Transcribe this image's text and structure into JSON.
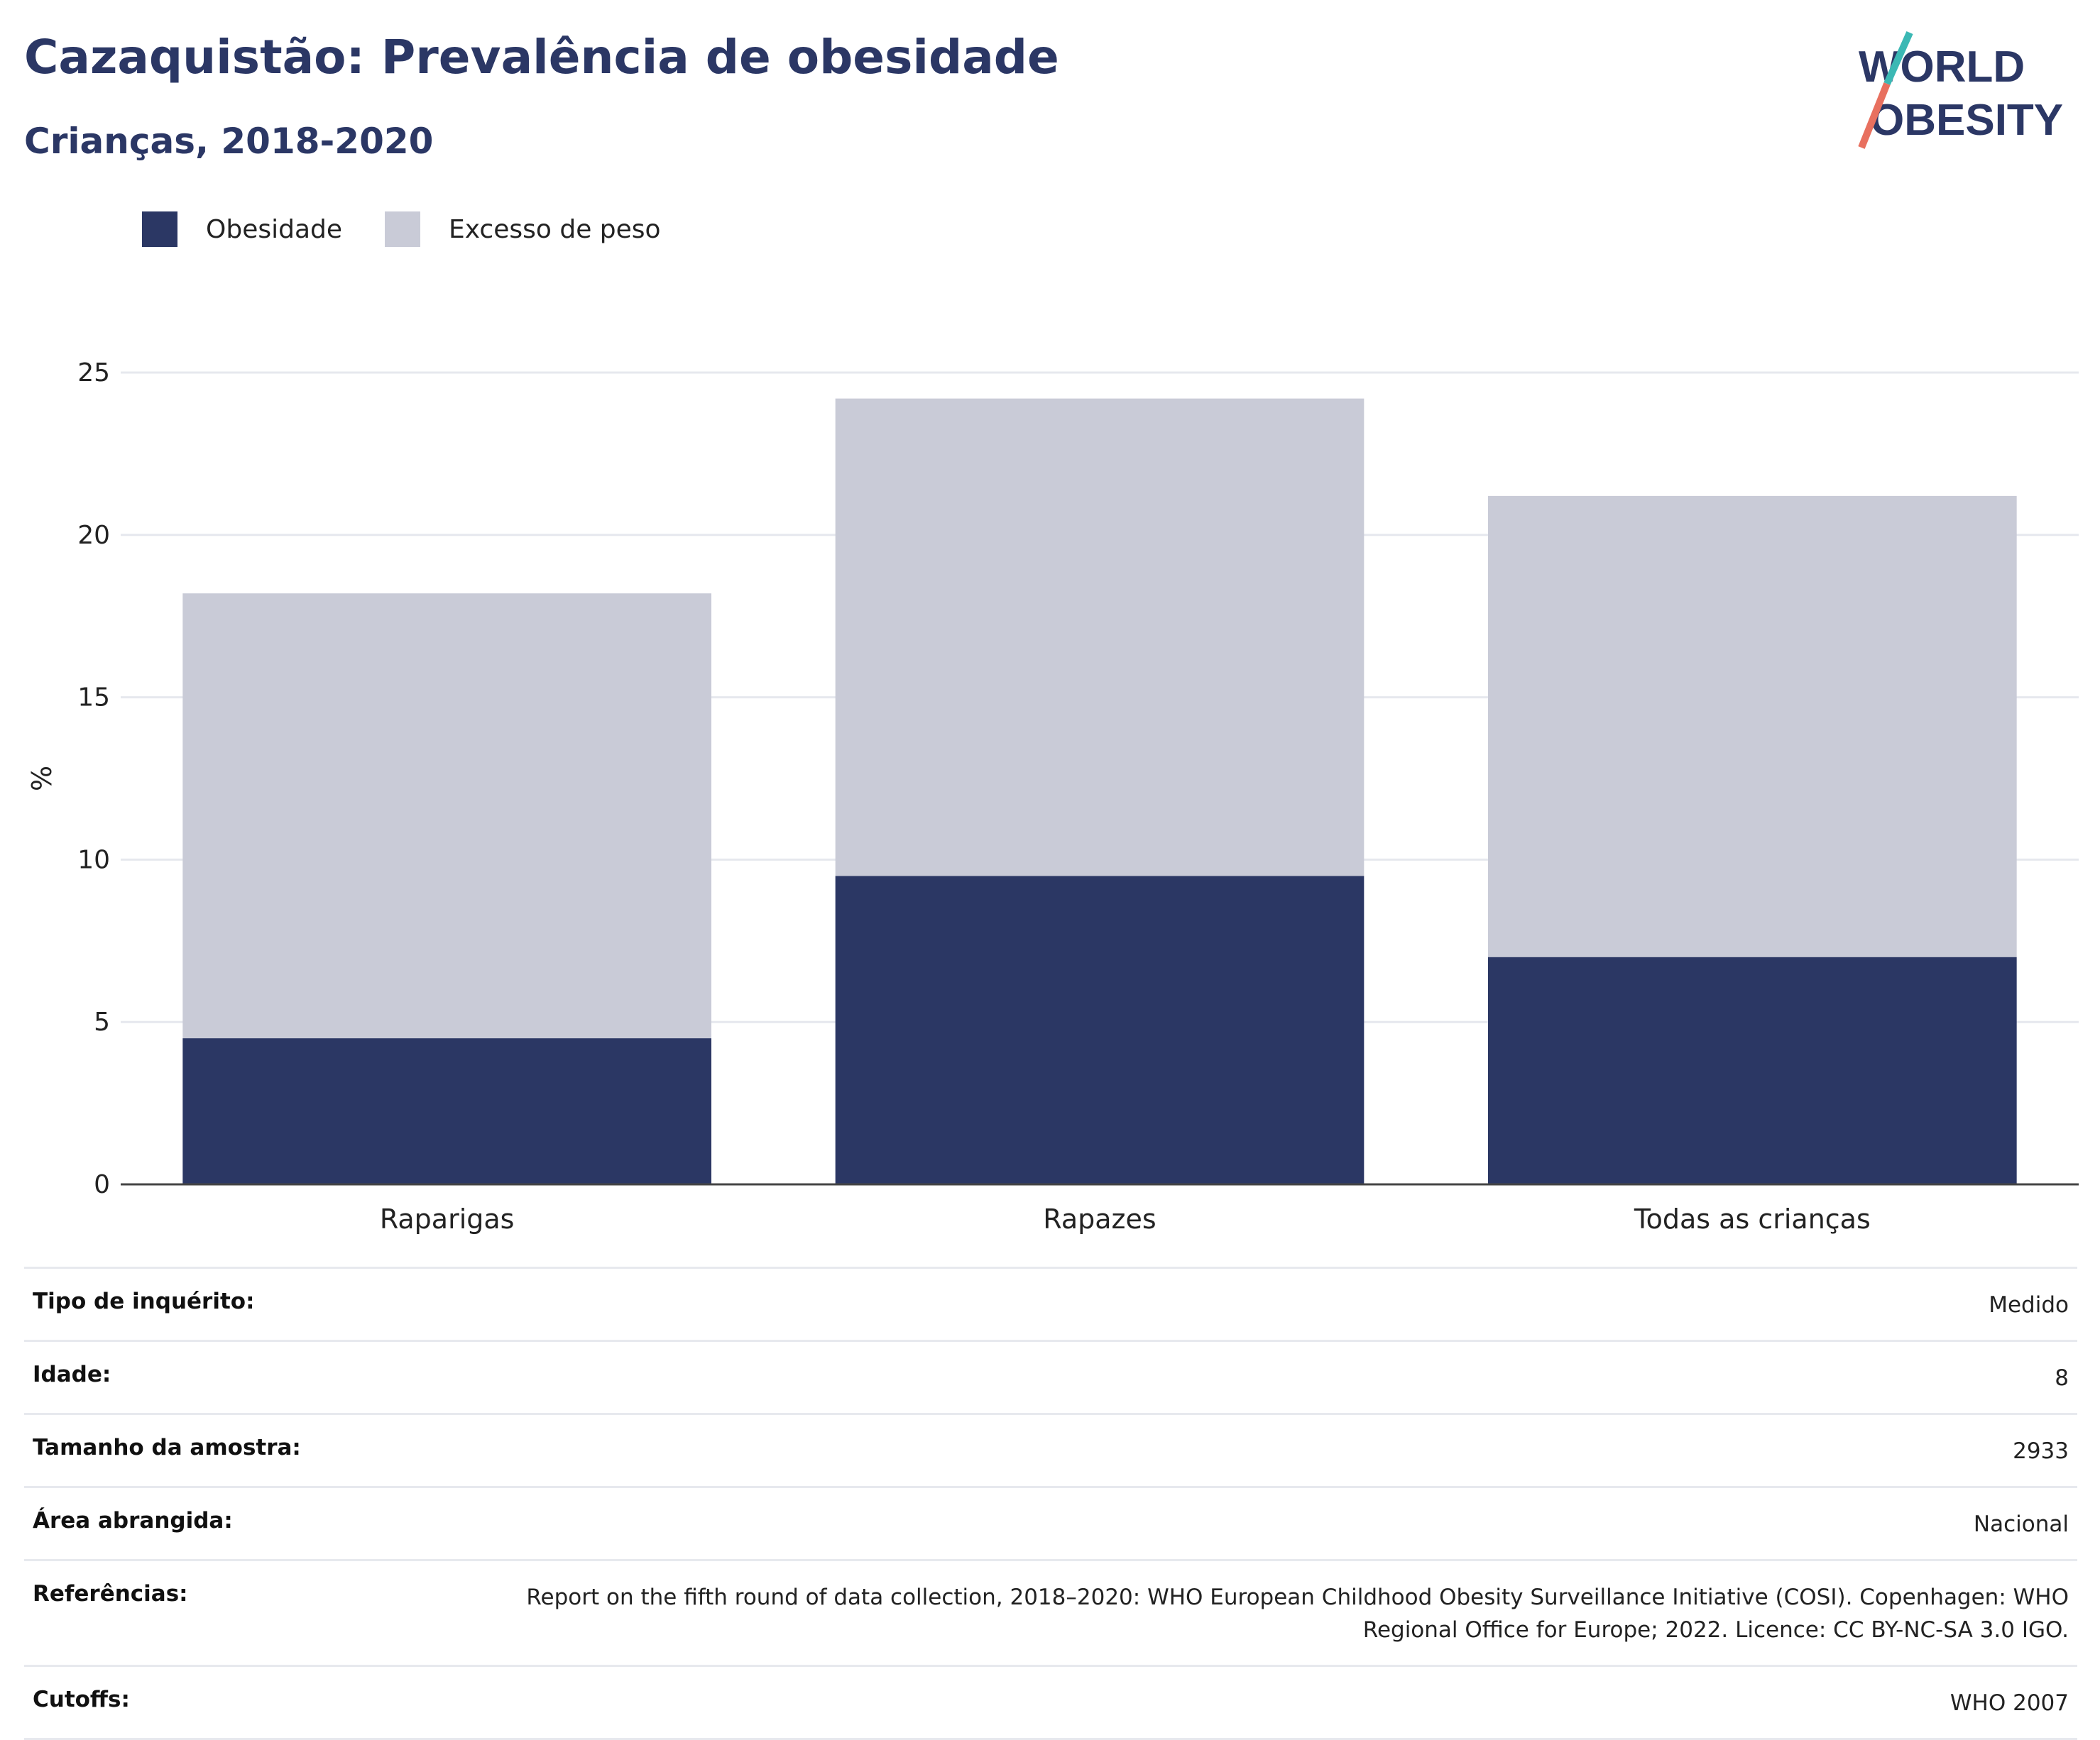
{
  "header": {
    "title": "Cazaquistão: Prevalência de obesidade",
    "subtitle": "Crianças, 2018-2020"
  },
  "logo": {
    "line1": "WORLD",
    "line2": "OBESITY"
  },
  "legend": [
    {
      "label": "Obesidade",
      "color": "#2b3764"
    },
    {
      "label": "Excesso de peso",
      "color": "#c9cbd7"
    }
  ],
  "chart_data": {
    "type": "bar",
    "stacked": true,
    "categories": [
      "Raparigas",
      "Rapazes",
      "Todas as crianças"
    ],
    "series": [
      {
        "name": "Obesidade",
        "values": [
          4.5,
          9.5,
          7.0
        ],
        "color": "#2b3764"
      },
      {
        "name": "Excesso de peso",
        "values": [
          13.7,
          14.7,
          14.2
        ],
        "color": "#c9cbd7"
      }
    ],
    "ylabel": "%",
    "ylim": [
      0,
      25
    ],
    "yticks": [
      0,
      5,
      10,
      15,
      20,
      25
    ],
    "grid": true,
    "legend_position": "top-left"
  },
  "metadata": [
    {
      "label": "Tipo de inquérito:",
      "value": "Medido"
    },
    {
      "label": "Idade:",
      "value": "8"
    },
    {
      "label": "Tamanho da amostra:",
      "value": "2933"
    },
    {
      "label": "Área abrangida:",
      "value": "Nacional"
    },
    {
      "label": "Referências:",
      "value": "Report on the fifth round of data collection, 2018–2020: WHO European Childhood Obesity Surveillance Initiative (COSI). Copenhagen: WHO Regional Office for Europe; 2022. Licence: CC BY-NC-SA 3.0 IGO."
    },
    {
      "label": "Cutoffs:",
      "value": "WHO 2007"
    }
  ]
}
